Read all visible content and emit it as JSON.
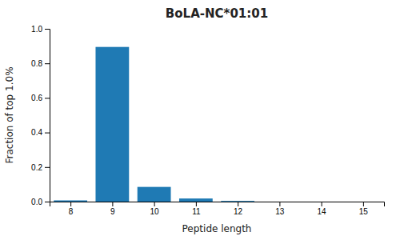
{
  "chart_data": {
    "type": "bar",
    "title": "BoLA-NC*01:01",
    "xlabel": "Peptide length",
    "ylabel": "Fraction of top 1.0%",
    "x": [
      8,
      9,
      10,
      11,
      12,
      13,
      14,
      15
    ],
    "values": [
      0.007,
      0.895,
      0.085,
      0.018,
      0.004,
      0.0,
      0.0,
      0.0
    ],
    "color": "#1f7ab4",
    "xlim": [
      7.5,
      15.5
    ],
    "xticks": [
      8,
      9,
      10,
      11,
      12,
      13,
      14,
      15
    ],
    "ylim": [
      0,
      1.0
    ],
    "yticks": [
      {
        "value": 0.0,
        "label": "0.0"
      },
      0.2,
      0.4,
      0.6,
      0.8,
      {
        "value": 1.0,
        "label": "1.0"
      }
    ],
    "grid": false
  }
}
